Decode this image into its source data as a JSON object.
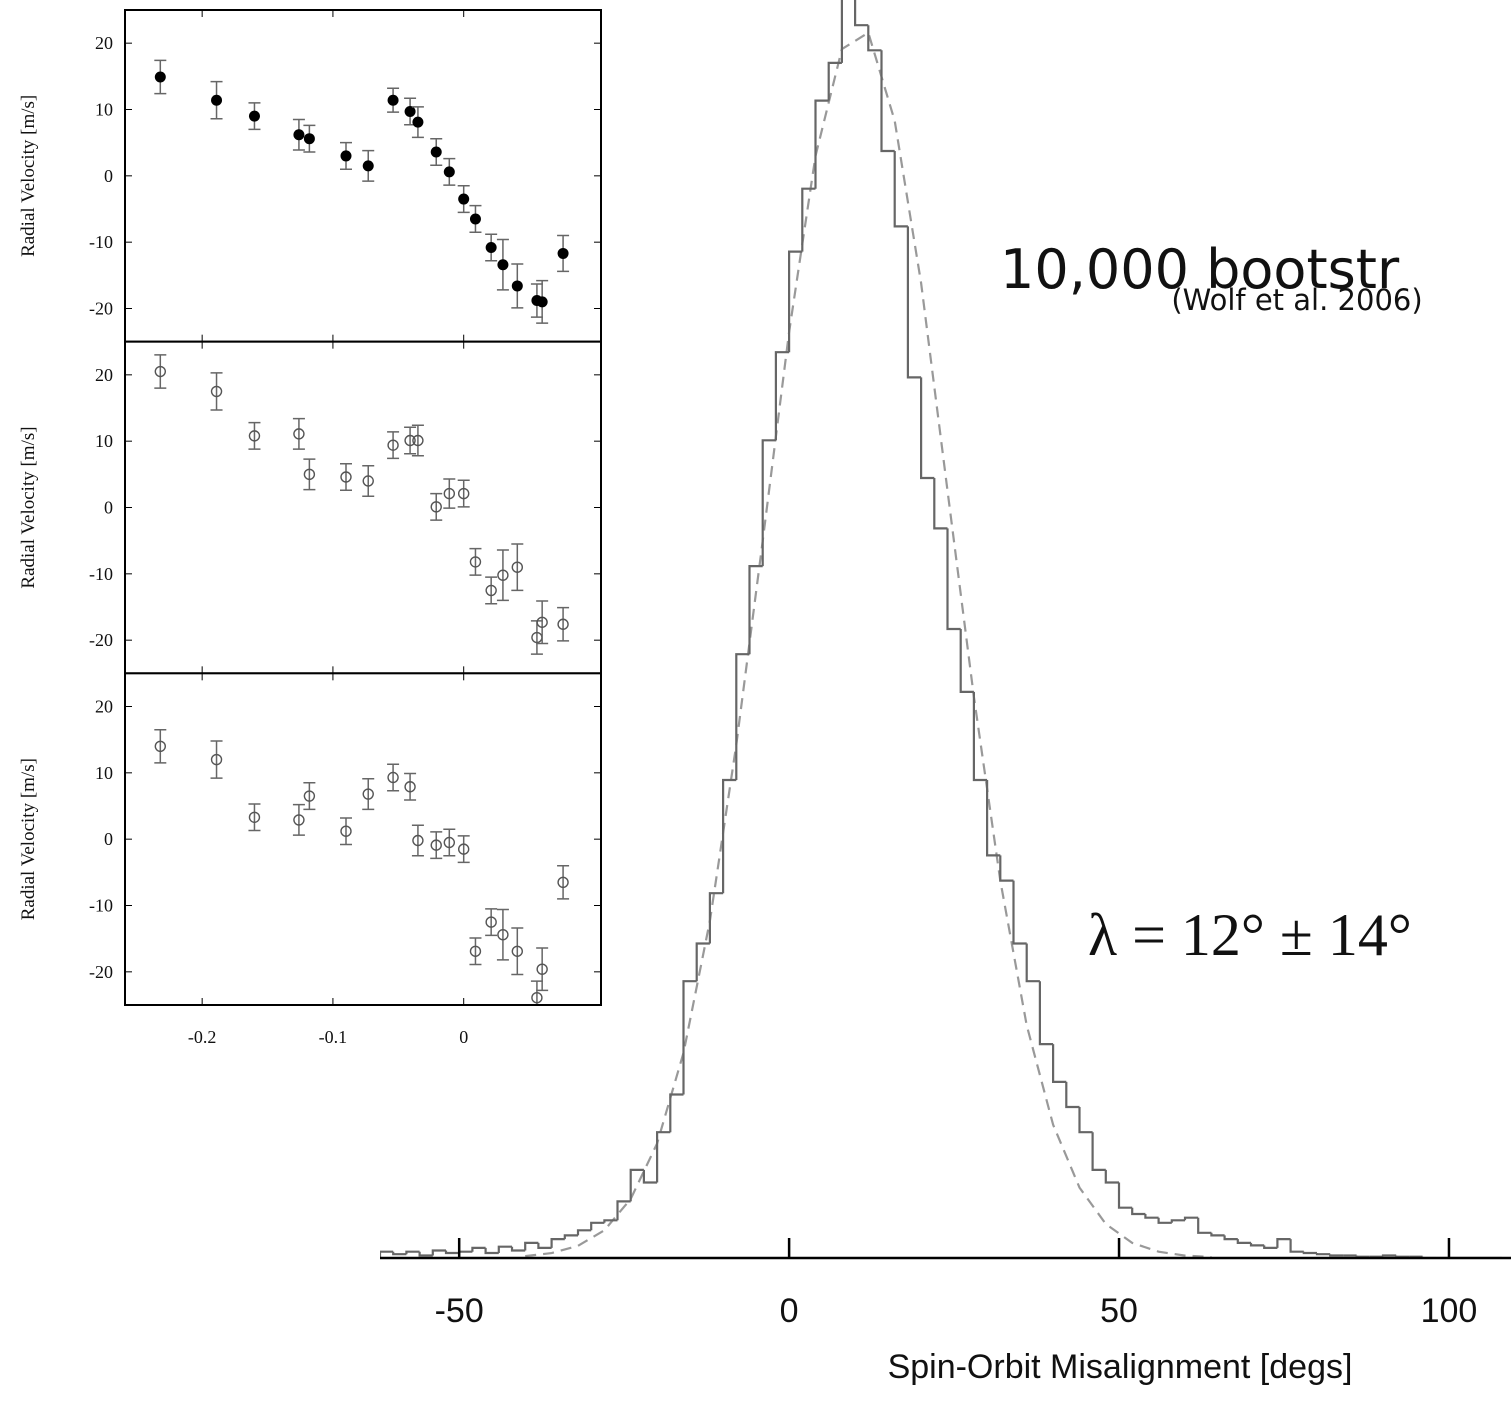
{
  "chart_data": [
    {
      "type": "histogram",
      "annotations": [
        "10,000 bootstr",
        "(Wolf et al. 2006)",
        "λ = 12° ± 14°"
      ],
      "x_label": "Spin-Orbit Misalignment [degs]",
      "bins": [
        -62,
        -60,
        -58,
        -56,
        -54,
        -52,
        -50,
        -48,
        -46,
        -44,
        -42,
        -40,
        -38,
        -36,
        -34,
        -32,
        -30,
        -28,
        -26,
        -24,
        -22,
        -20,
        -18,
        -16,
        -14,
        -12,
        -10,
        -8,
        -6,
        -4,
        -2,
        0,
        2,
        4,
        6,
        8,
        10,
        12,
        14,
        16,
        18,
        20,
        22,
        24,
        26,
        28,
        30,
        32,
        34,
        36,
        38,
        40,
        42,
        44,
        46,
        48,
        50,
        52,
        54,
        56,
        58,
        60,
        62,
        64,
        66,
        68,
        70,
        72,
        74,
        76,
        78,
        80,
        82,
        84,
        86,
        88,
        90,
        92,
        94,
        96,
        98,
        100,
        102,
        104,
        106,
        108
      ],
      "values": [
        0.5,
        0.3,
        0.5,
        0.2,
        0.6,
        0.4,
        0.5,
        0.8,
        0.4,
        0.9,
        0.6,
        1.2,
        0.8,
        1.5,
        1.8,
        2.2,
        2.8,
        3.0,
        4.5,
        7,
        6,
        10,
        13,
        22,
        25,
        29,
        38,
        48,
        55,
        65,
        72,
        80,
        85,
        92,
        95,
        104,
        98,
        96,
        88,
        82,
        70,
        62,
        58,
        50,
        45,
        38,
        32,
        30,
        25,
        22,
        17,
        14,
        12,
        10,
        7,
        6,
        4,
        3.5,
        3.2,
        2.8,
        3,
        3.2,
        2,
        1.8,
        1.5,
        1.2,
        1,
        0.8,
        1.5,
        0.5,
        0.4,
        0.3,
        0.2,
        0.2,
        0.1,
        0.1,
        0.2,
        0.1,
        0.1,
        0,
        0,
        0,
        0,
        0,
        0
      ],
      "color": "#666666",
      "fit": {
        "x": [
          -40,
          -36,
          -32,
          -28,
          -24,
          -20,
          -16,
          -12,
          -8,
          -4,
          0,
          4,
          8,
          12,
          16,
          20,
          24,
          28,
          32,
          36,
          40,
          44,
          48,
          52,
          56,
          60,
          64
        ],
        "values": [
          0.15,
          0.39,
          0.97,
          2.2,
          4.7,
          9.1,
          16.3,
          26.8,
          40.8,
          57,
          73.6,
          87.6,
          96.1,
          97.4,
          90.4,
          77.5,
          61,
          44.6,
          30,
          18.5,
          10.6,
          5.6,
          2.7,
          1.2,
          0.5,
          0.19,
          0.07
        ],
        "color": "#999999",
        "dashed": true
      },
      "xlim": [
        -62,
        109.4
      ],
      "xticks": [
        -50,
        0,
        50,
        100
      ],
      "ylim": [
        0,
        100
      ]
    },
    {
      "type": "scatter",
      "y_label": "Radial Velocity [m/s]",
      "marker": "filled",
      "color": "#000000",
      "error_color": "#666666",
      "x": [
        -0.232,
        -0.189,
        -0.16,
        -0.126,
        -0.118,
        -0.09,
        -0.073,
        -0.054,
        -0.041,
        -0.035,
        -0.021,
        -0.011,
        0.0,
        0.009,
        0.021,
        0.03,
        0.041,
        0.056,
        0.06,
        0.076
      ],
      "values": [
        14.9,
        11.4,
        9.0,
        6.2,
        5.6,
        3.0,
        1.5,
        11.4,
        9.7,
        8.1,
        3.6,
        0.6,
        -3.5,
        -6.5,
        -10.8,
        -13.4,
        -16.6,
        -18.8,
        -19.0,
        -11.7
      ],
      "errors": [
        2.5,
        2.8,
        2,
        2.3,
        2,
        2,
        2.3,
        1.8,
        2,
        2.3,
        2,
        2,
        2,
        2,
        2,
        3.8,
        3.3,
        2.5,
        3.2,
        2.7
      ],
      "xlim": [
        -0.259,
        0.105
      ],
      "xticks": [
        -0.2,
        -0.1,
        0
      ],
      "show_x_tick_labels": false,
      "ylim": [
        -25,
        25
      ],
      "yticks": [
        -20,
        -10,
        0,
        10,
        20
      ]
    },
    {
      "type": "scatter",
      "y_label": "Radial Velocity [m/s]",
      "marker": "open",
      "color": "#555555",
      "error_color": "#666666",
      "x": [
        -0.232,
        -0.189,
        -0.16,
        -0.126,
        -0.118,
        -0.09,
        -0.073,
        -0.054,
        -0.041,
        -0.035,
        -0.021,
        -0.011,
        0.0,
        0.009,
        0.021,
        0.03,
        0.041,
        0.056,
        0.06,
        0.076
      ],
      "values": [
        20.5,
        17.5,
        10.8,
        11.1,
        5.0,
        4.6,
        4.0,
        9.4,
        10.1,
        10.1,
        0.1,
        2.1,
        2.1,
        -8.2,
        -12.5,
        -10.2,
        -9.0,
        -19.6,
        -17.3,
        -17.6
      ],
      "errors": [
        2.5,
        2.8,
        2,
        2.3,
        2.3,
        2,
        2.3,
        2,
        2,
        2.3,
        2,
        2.2,
        2,
        2,
        2,
        3.8,
        3.5,
        2.5,
        3.2,
        2.5
      ],
      "xlim": [
        -0.259,
        0.105
      ],
      "xticks": [
        -0.2,
        -0.1,
        0
      ],
      "show_x_tick_labels": false,
      "ylim": [
        -25,
        25
      ],
      "yticks": [
        -20,
        -10,
        0,
        10,
        20
      ]
    },
    {
      "type": "scatter",
      "y_label": "Radial Velocity [m/s]",
      "marker": "open",
      "color": "#555555",
      "error_color": "#666666",
      "x": [
        -0.232,
        -0.189,
        -0.16,
        -0.126,
        -0.118,
        -0.09,
        -0.073,
        -0.054,
        -0.041,
        -0.035,
        -0.021,
        -0.011,
        0.0,
        0.009,
        0.021,
        0.03,
        0.041,
        0.056,
        0.06,
        0.076
      ],
      "values": [
        14.0,
        12.0,
        3.3,
        2.9,
        6.5,
        1.2,
        6.8,
        9.3,
        7.9,
        -0.2,
        -0.9,
        -0.5,
        -1.5,
        -16.9,
        -12.5,
        -14.4,
        -16.9,
        -23.9,
        -19.6,
        -6.5
      ],
      "errors": [
        2.5,
        2.8,
        2,
        2.3,
        2,
        2,
        2.3,
        2,
        2,
        2.3,
        2,
        2,
        2,
        2,
        2,
        3.8,
        3.5,
        2.5,
        3.2,
        2.5
      ],
      "xlim": [
        -0.259,
        0.105
      ],
      "xticks": [
        -0.2,
        -0.1,
        0
      ],
      "show_x_tick_labels": true,
      "ylim": [
        -25,
        25
      ],
      "yticks": [
        -20,
        -10,
        0,
        10,
        20
      ]
    }
  ]
}
